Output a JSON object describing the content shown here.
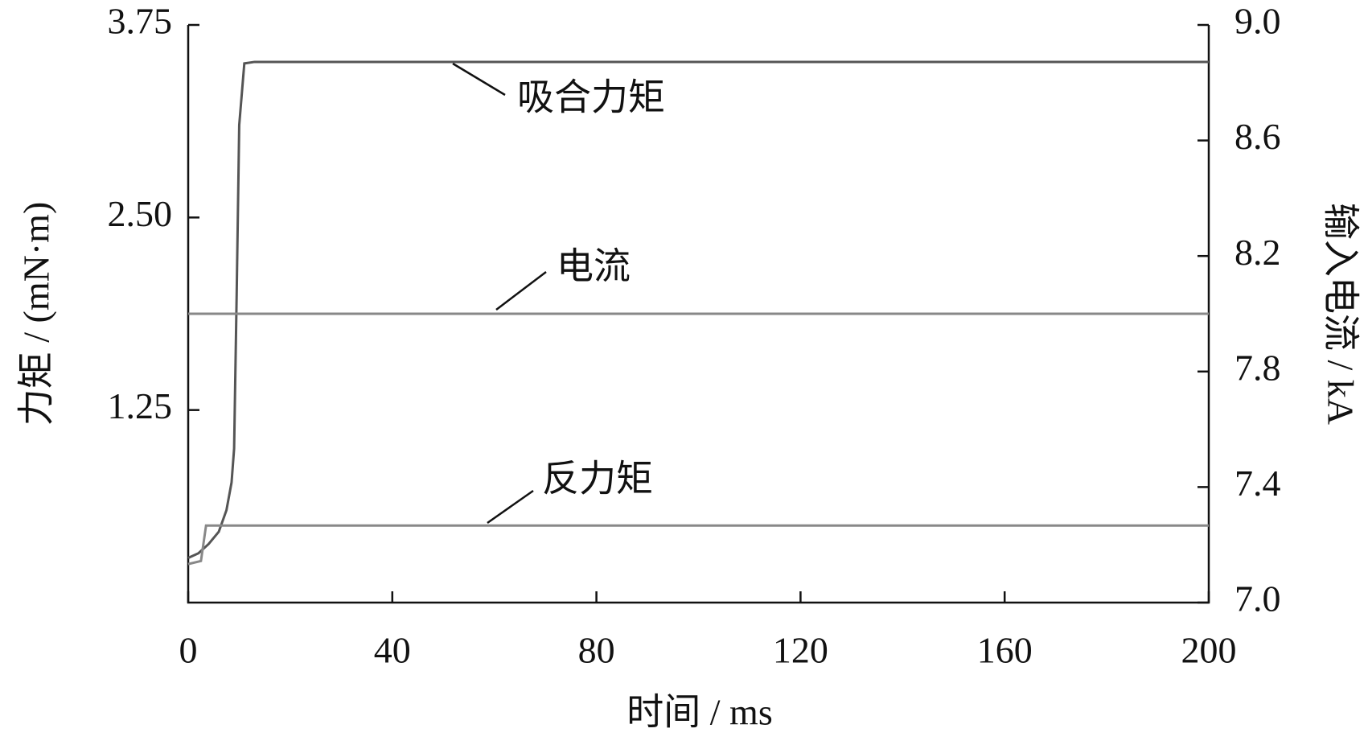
{
  "chart_data": {
    "type": "line",
    "xlabel": "时间 / ms",
    "ylabel": "力矩 / (mN·m)",
    "y2label": "输入电流 / kA",
    "xlim": [
      0,
      200
    ],
    "xticks": [
      0,
      40,
      80,
      120,
      160,
      200
    ],
    "ylim": [
      0,
      3.75
    ],
    "yticks": [
      {
        "value": 1.25,
        "label": "1.25"
      },
      {
        "value": 2.5,
        "label": "2.50"
      },
      3.75
    ],
    "y2lim": [
      7.0,
      9.0
    ],
    "y2ticks": [
      {
        "value": 7.0,
        "label": "7.0"
      },
      7.4,
      7.8,
      8.2,
      8.6,
      {
        "value": 9.0,
        "label": "9.0"
      }
    ],
    "series": [
      {
        "name": "吸合力矩",
        "color": "#555555",
        "x": [
          0,
          2,
          4,
          6,
          7.5,
          8.5,
          9,
          9.5,
          10,
          11,
          13,
          200
        ],
        "values": [
          0.29,
          0.32,
          0.38,
          0.46,
          0.6,
          0.78,
          1.0,
          2.0,
          3.1,
          3.5,
          3.51,
          3.51
        ]
      },
      {
        "name": "电流",
        "color": "#888888",
        "axis": "y2",
        "x": [
          0,
          200
        ],
        "values": [
          8.0,
          8.0
        ]
      },
      {
        "name": "反力矩",
        "color": "#888888",
        "x": [
          0,
          2.5,
          3.5,
          200
        ],
        "values": [
          0.25,
          0.27,
          0.5,
          0.5
        ]
      }
    ]
  }
}
